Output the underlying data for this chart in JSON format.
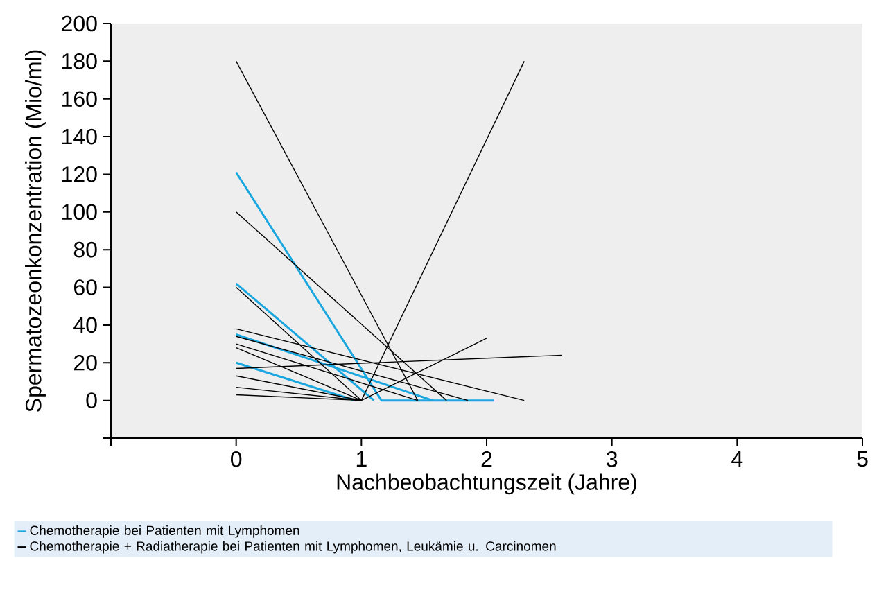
{
  "chart_data": {
    "type": "line",
    "xlabel": "Nachbeobachtungszeit (Jahre)",
    "ylabel": "Spermatozeonkonzentration (Mio/ml)",
    "xlim": [
      -1,
      5
    ],
    "xticks": [
      {
        "value": -1,
        "label": null
      },
      0,
      1,
      2,
      3,
      4,
      5
    ],
    "ylim": [
      -20,
      200
    ],
    "yticks": [
      {
        "value": -20,
        "label": null
      },
      0,
      20,
      40,
      60,
      80,
      100,
      120,
      140,
      160,
      180,
      200
    ],
    "legend": "bottom",
    "marker": "none",
    "line_style": "solid",
    "grid": false,
    "series": [
      {
        "name": "Chemotherapie bei Patienten mit Lymphomen",
        "color": "#1aa7e0",
        "x": [
          0,
          1.16,
          2.06
        ],
        "values": [
          121,
          0,
          0
        ]
      },
      {
        "color": "#1aa7e0",
        "x": [
          0,
          1.1
        ],
        "values": [
          62,
          0
        ]
      },
      {
        "color": "#1aa7e0",
        "x": [
          0,
          1.57
        ],
        "values": [
          35,
          0
        ]
      },
      {
        "color": "#1aa7e0",
        "x": [
          0,
          0.95
        ],
        "values": [
          20,
          0
        ]
      },
      {
        "name": "Chemotherapie + Radiatherapie bei Patienten mit Lymphomen, Leukämie u. Carcinomen",
        "color": "#000000",
        "x": [
          0,
          1.45
        ],
        "values": [
          180,
          0
        ]
      },
      {
        "color": "#000000",
        "x": [
          0,
          1.68
        ],
        "values": [
          100,
          0
        ]
      },
      {
        "color": "#000000",
        "x": [
          0,
          1.0
        ],
        "values": [
          60,
          0
        ]
      },
      {
        "color": "#000000",
        "x": [
          0,
          2.3
        ],
        "values": [
          38,
          0
        ]
      },
      {
        "color": "#000000",
        "x": [
          0,
          1.85
        ],
        "values": [
          34,
          0
        ]
      },
      {
        "color": "#000000",
        "x": [
          0,
          1.45
        ],
        "values": [
          30,
          0
        ]
      },
      {
        "color": "#000000",
        "x": [
          0,
          1.0
        ],
        "values": [
          28,
          0
        ]
      },
      {
        "color": "#000000",
        "x": [
          0,
          2.6
        ],
        "values": [
          17,
          24
        ]
      },
      {
        "color": "#000000",
        "x": [
          0,
          1.0
        ],
        "values": [
          13,
          0
        ]
      },
      {
        "color": "#000000",
        "x": [
          0,
          1.0
        ],
        "values": [
          7,
          0
        ]
      },
      {
        "color": "#000000",
        "x": [
          0,
          1.0
        ],
        "values": [
          3,
          0
        ]
      },
      {
        "color": "#000000",
        "x": [
          1.0,
          2.3
        ],
        "values": [
          0,
          180
        ]
      },
      {
        "color": "#000000",
        "x": [
          1.0,
          2.0
        ],
        "values": [
          0,
          33
        ]
      }
    ]
  }
}
